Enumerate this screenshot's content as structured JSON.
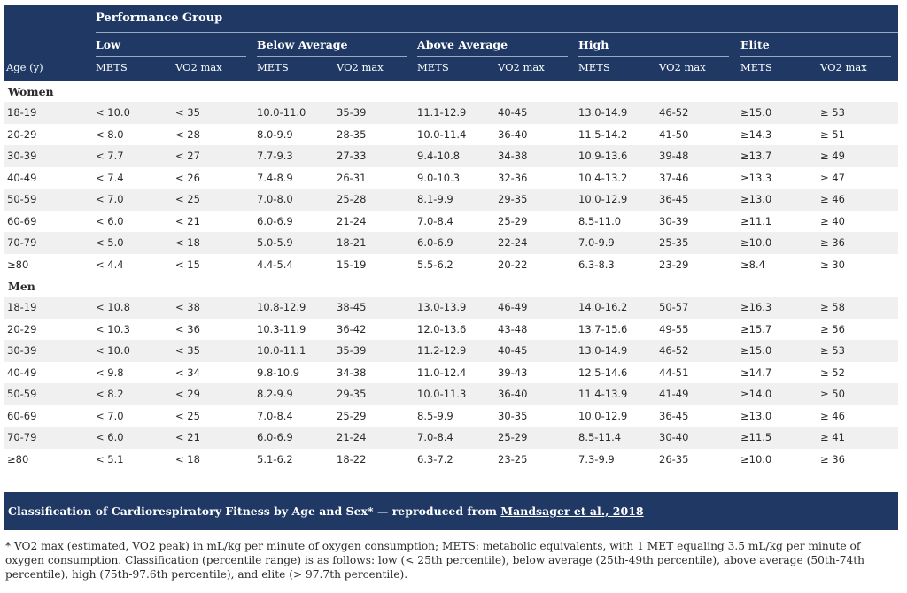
{
  "header": {
    "group_title": "Performance Group",
    "groups": [
      "Low",
      "Below Average",
      "Above Average",
      "High",
      "Elite"
    ],
    "age_label": "Age (y)",
    "mets_label": "METS",
    "vo2_label": "VO2 max"
  },
  "sections": [
    {
      "label": "Women",
      "rows": [
        [
          "18-19",
          "< 10.0",
          "< 35",
          "10.0-11.0",
          "35-39",
          "11.1-12.9",
          "40-45",
          "13.0-14.9",
          "46-52",
          "≥15.0",
          "≥ 53"
        ],
        [
          "20-29",
          "< 8.0",
          "< 28",
          "8.0-9.9",
          "28-35",
          "10.0-11.4",
          "36-40",
          "11.5-14.2",
          "41-50",
          "≥14.3",
          "≥ 51"
        ],
        [
          "30-39",
          "< 7.7",
          "< 27",
          "7.7-9.3",
          "27-33",
          "9.4-10.8",
          "34-38",
          "10.9-13.6",
          "39-48",
          "≥13.7",
          "≥ 49"
        ],
        [
          "40-49",
          "< 7.4",
          "< 26",
          "7.4-8.9",
          "26-31",
          "9.0-10.3",
          "32-36",
          "10.4-13.2",
          "37-46",
          "≥13.3",
          "≥ 47"
        ],
        [
          "50-59",
          "< 7.0",
          "< 25",
          "7.0-8.0",
          "25-28",
          "8.1-9.9",
          "29-35",
          "10.0-12.9",
          "36-45",
          "≥13.0",
          "≥ 46"
        ],
        [
          "60-69",
          "< 6.0",
          "< 21",
          "6.0-6.9",
          "21-24",
          "7.0-8.4",
          "25-29",
          "8.5-11.0",
          "30-39",
          "≥11.1",
          "≥ 40"
        ],
        [
          "70-79",
          "< 5.0",
          "< 18",
          "5.0-5.9",
          "18-21",
          "6.0-6.9",
          "22-24",
          "7.0-9.9",
          "25-35",
          "≥10.0",
          "≥ 36"
        ],
        [
          "≥80",
          "< 4.4",
          "< 15",
          "4.4-5.4",
          "15-19",
          "5.5-6.2",
          "20-22",
          "6.3-8.3",
          "23-29",
          "≥8.4",
          "≥ 30"
        ]
      ]
    },
    {
      "label": "Men",
      "rows": [
        [
          "18-19",
          "< 10.8",
          "< 38",
          "10.8-12.9",
          "38-45",
          "13.0-13.9",
          "46-49",
          "14.0-16.2",
          "50-57",
          "≥16.3",
          "≥ 58"
        ],
        [
          "20-29",
          "< 10.3",
          "< 36",
          "10.3-11.9",
          "36-42",
          "12.0-13.6",
          "43-48",
          "13.7-15.6",
          "49-55",
          "≥15.7",
          "≥ 56"
        ],
        [
          "30-39",
          "< 10.0",
          "< 35",
          "10.0-11.1",
          "35-39",
          "11.2-12.9",
          "40-45",
          "13.0-14.9",
          "46-52",
          "≥15.0",
          "≥ 53"
        ],
        [
          "40-49",
          "< 9.8",
          "< 34",
          "9.8-10.9",
          "34-38",
          "11.0-12.4",
          "39-43",
          "12.5-14.6",
          "44-51",
          "≥14.7",
          "≥ 52"
        ],
        [
          "50-59",
          "< 8.2",
          "< 29",
          "8.2-9.9",
          "29-35",
          "10.0-11.3",
          "36-40",
          "11.4-13.9",
          "41-49",
          "≥14.0",
          "≥ 50"
        ],
        [
          "60-69",
          "< 7.0",
          "< 25",
          "7.0-8.4",
          "25-29",
          "8.5-9.9",
          "30-35",
          "10.0-12.9",
          "36-45",
          "≥13.0",
          "≥ 46"
        ],
        [
          "70-79",
          "< 6.0",
          "< 21",
          "6.0-6.9",
          "21-24",
          "7.0-8.4",
          "25-29",
          "8.5-11.4",
          "30-40",
          "≥11.5",
          "≥ 41"
        ],
        [
          "≥80",
          "< 5.1",
          "< 18",
          "5.1-6.2",
          "18-22",
          "6.3-7.2",
          "23-25",
          "7.3-9.9",
          "26-35",
          "≥10.0",
          "≥ 36"
        ]
      ]
    }
  ],
  "caption": {
    "text": "Classification of Cardiorespiratory Fitness by Age and Sex* — reproduced from ",
    "link": "Mandsager et al., 2018"
  },
  "footnote": "* VO2 max (estimated, VO2 peak) in mL/kg per minute of oxygen consumption; METS: metabolic equivalents, with 1 MET equaling 3.5 mL/kg per minute of oxygen consumption. Classification (percentile range) is as follows: low (< 25th percentile), below average (25th-49th percentile), above average (50th-74th percentile), high (75th-97.6th percentile), and elite (> 97.7th percentile).",
  "colors": {
    "header_bg": "#1f3864",
    "stripe": "#f0f0f0"
  }
}
